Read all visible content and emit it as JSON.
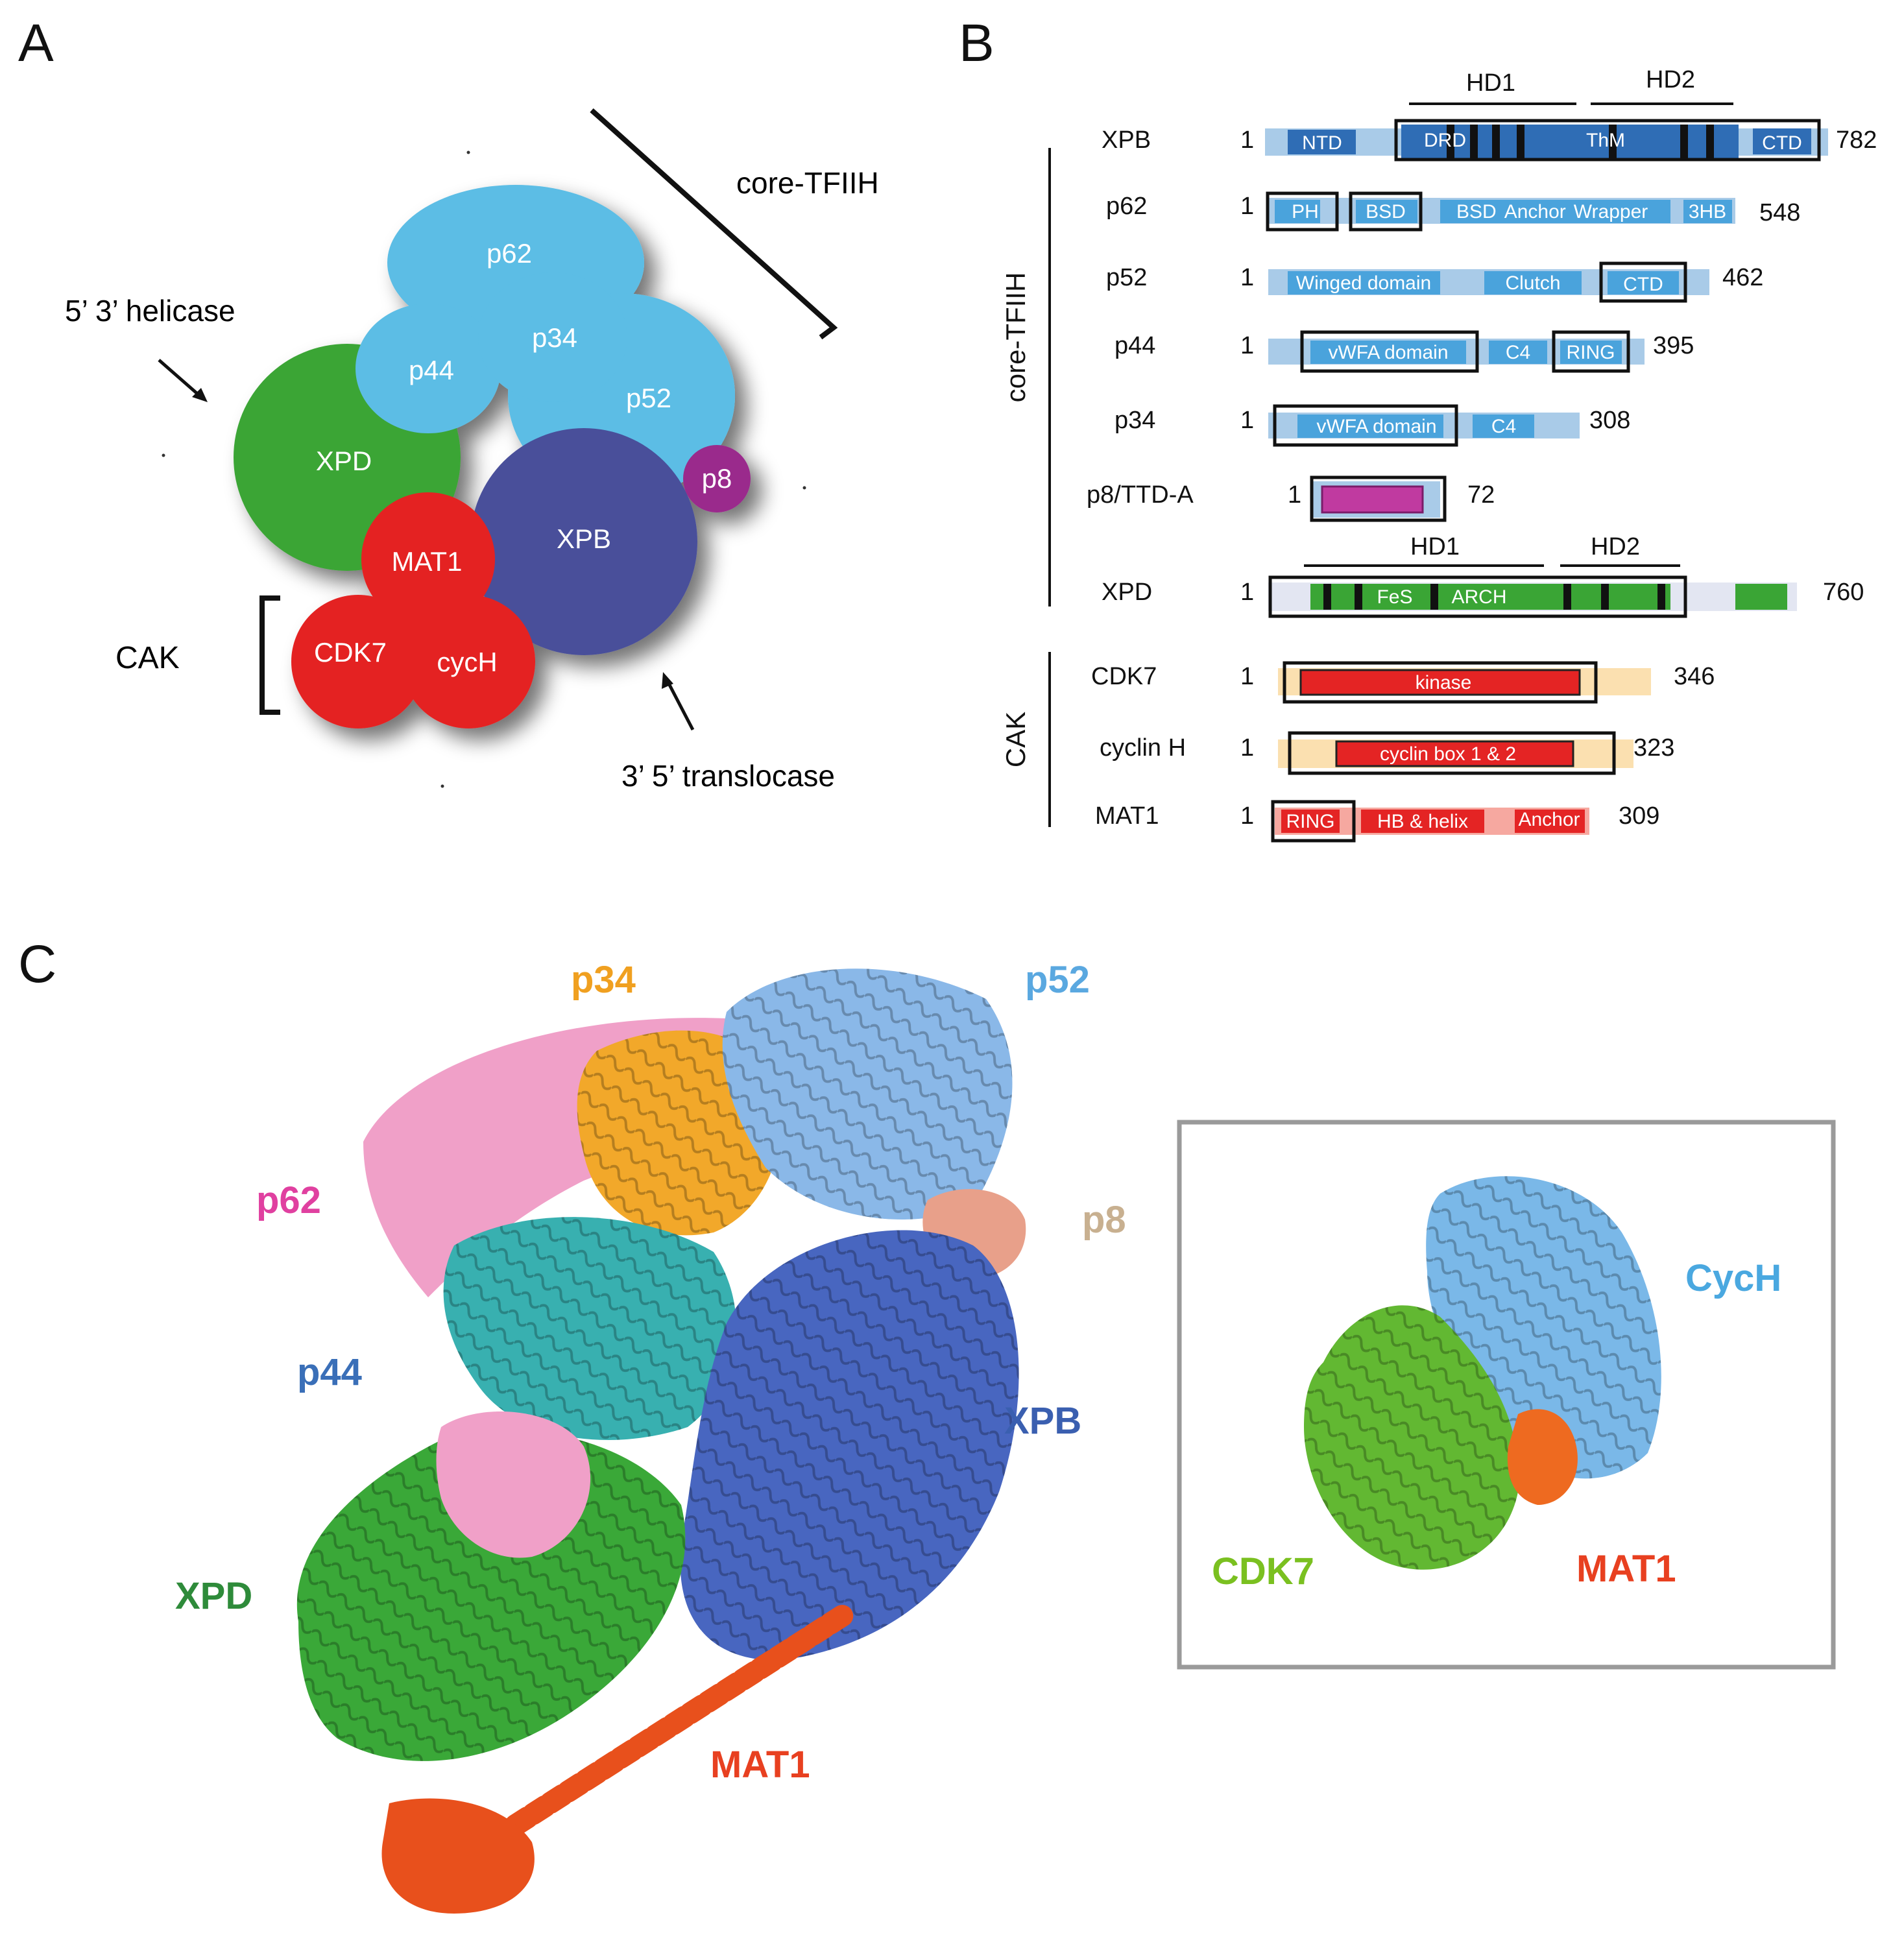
{
  "panel_a": {
    "letter": "A",
    "labels": {
      "core": "core-TFIIH",
      "helicase": "5’ 3’ helicase",
      "translocase": "3’ 5’ translocase",
      "cak": "CAK"
    },
    "subunits": {
      "p62": "p62",
      "p34": "p34",
      "p44": "p44",
      "p52": "p52",
      "p8": "p8",
      "xpd": "XPD",
      "xpb": "XPB",
      "mat1": "MAT1",
      "cdk7": "CDK7",
      "cych": "cycH"
    },
    "colors": {
      "light_blue": "#5bbde5",
      "green": "#3aa535",
      "purple": "#4a4f9a",
      "red": "#e42424",
      "magenta": "#9a2b8c"
    }
  },
  "panel_b": {
    "letter": "B",
    "group_core": "core-TFIIH",
    "group_cak": "CAK",
    "rows": [
      {
        "name": "XPB",
        "start": "1",
        "end": "782",
        "domains": [
          "NTD",
          "DRD",
          "ThM",
          "CTD"
        ],
        "header": [
          "HD1",
          "HD2"
        ]
      },
      {
        "name": "p62",
        "start": "1",
        "end": "548",
        "domains": [
          "PH",
          "BSD",
          "BSD",
          "Anchor",
          "Wrapper",
          "3HB"
        ]
      },
      {
        "name": "p52",
        "start": "1",
        "end": "462",
        "domains": [
          "Winged domain",
          "Clutch",
          "CTD"
        ]
      },
      {
        "name": "p44",
        "start": "1",
        "end": "395",
        "domains": [
          "vWFA domain",
          "C4",
          "RING"
        ]
      },
      {
        "name": "p34",
        "start": "1",
        "end": "308",
        "domains": [
          "vWFA domain",
          "C4"
        ]
      },
      {
        "name": "p8/TTD-A",
        "start": "1",
        "end": "72",
        "domains": []
      },
      {
        "name": "XPD",
        "start": "1",
        "end": "760",
        "domains": [
          "FeS",
          "ARCH"
        ],
        "header": [
          "HD1",
          "HD2"
        ]
      },
      {
        "name": "CDK7",
        "start": "1",
        "end": "346",
        "domains": [
          "kinase"
        ]
      },
      {
        "name": "cyclin H",
        "start": "1",
        "end": "323",
        "domains": [
          "cyclin box 1 & 2"
        ]
      },
      {
        "name": "MAT1",
        "start": "1",
        "end": "309",
        "domains": [
          "RING",
          "HB & helix",
          "Anchor"
        ]
      }
    ]
  },
  "panel_c": {
    "letter": "C",
    "labels": {
      "p34": "p34",
      "p52": "p52",
      "p62": "p62",
      "p8": "p8",
      "p44": "p44",
      "xpb": "XPB",
      "xpd": "XPD",
      "mat1": "MAT1"
    },
    "inset": {
      "cych": "CycH",
      "cdk7": "CDK7",
      "mat1": "MAT1"
    },
    "colors": {
      "p34": "#f0a020",
      "p52": "#5aa8e0",
      "p62": "#e040a0",
      "p8": "#c8b090",
      "p44": "#3a6fb8",
      "xpb": "#3a5fb0",
      "xpd": "#2e8b3a",
      "mat1": "#e84020",
      "cych": "#4aa8e0",
      "cdk7": "#7ac020"
    }
  }
}
